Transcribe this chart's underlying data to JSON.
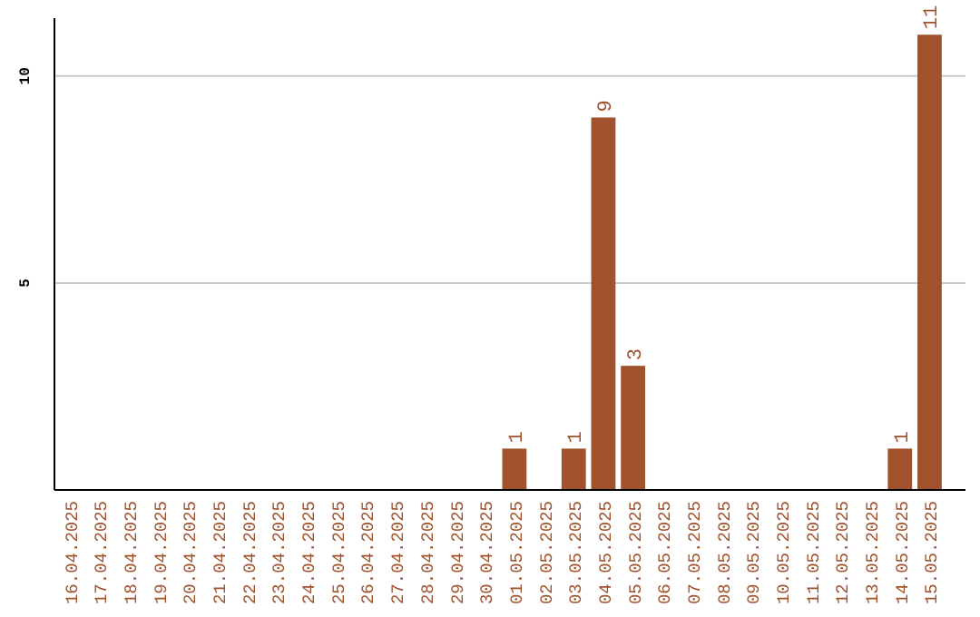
{
  "chart_data": {
    "type": "bar",
    "categories": [
      "16.04.2025",
      "17.04.2025",
      "18.04.2025",
      "19.04.2025",
      "20.04.2025",
      "21.04.2025",
      "22.04.2025",
      "23.04.2025",
      "24.04.2025",
      "25.04.2025",
      "26.04.2025",
      "27.04.2025",
      "28.04.2025",
      "29.04.2025",
      "30.04.2025",
      "01.05.2025",
      "02.05.2025",
      "03.05.2025",
      "04.05.2025",
      "05.05.2025",
      "06.05.2025",
      "07.05.2025",
      "08.05.2025",
      "09.05.2025",
      "10.05.2025",
      "11.05.2025",
      "12.05.2025",
      "13.05.2025",
      "14.05.2025",
      "15.05.2025"
    ],
    "values": [
      0,
      0,
      0,
      0,
      0,
      0,
      0,
      0,
      0,
      0,
      0,
      0,
      0,
      0,
      0,
      1,
      0,
      1,
      9,
      3,
      0,
      0,
      0,
      0,
      0,
      0,
      0,
      0,
      1,
      11
    ],
    "value_labels": [
      null,
      null,
      null,
      null,
      null,
      null,
      null,
      null,
      null,
      null,
      null,
      null,
      null,
      null,
      null,
      "1",
      null,
      "1",
      "9",
      "3",
      null,
      null,
      null,
      null,
      null,
      null,
      null,
      null,
      "1",
      "11"
    ],
    "color": "#a0522d",
    "ylim": [
      0,
      11.4
    ],
    "yticks": [
      5,
      10
    ],
    "grid": "y"
  }
}
